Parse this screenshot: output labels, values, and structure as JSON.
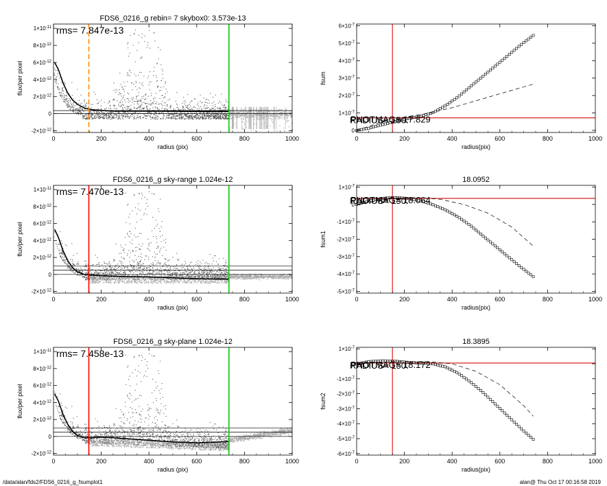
{
  "footer": {
    "left": "/data/alan/fds2/FDS6_0216_g_fsumplot1",
    "right": "alan@  Thu Oct 17 00:16:58 2019"
  },
  "colors": {
    "scatter_dark": "#555555",
    "scatter_light": "#aaaaaa",
    "aperture_orange": "#ff8c00",
    "aperture_red": "#ff0000",
    "sky_green": "#00cc00",
    "hline_red": "#dd2222"
  },
  "chart_data": [
    {
      "id": "left1",
      "type": "scatter",
      "title": "FDS6_0216_g rebin= 7    skybox0:  3.573e-13",
      "annotation": "rms= 7.847e-13",
      "xlabel": "radius (pix)",
      "ylabel": "flux/per pixel",
      "xlim": [
        0,
        1000
      ],
      "ylim": [
        -2.2e-12,
        1.05e-11
      ],
      "xticks": [
        "0",
        "200",
        "400",
        "600",
        "800",
        "1000"
      ],
      "yticks": [
        {
          "v": -2e-12,
          "m": "2",
          "e": "-12",
          "neg": true
        },
        {
          "v": 0,
          "m": "0",
          "e": "",
          "neg": false
        },
        {
          "v": 2e-12,
          "m": "2",
          "e": "-12",
          "neg": false
        },
        {
          "v": 4e-12,
          "m": "4",
          "e": "-12",
          "neg": false
        },
        {
          "v": 6e-12,
          "m": "6",
          "e": "-12",
          "neg": false
        },
        {
          "v": 8e-12,
          "m": "8",
          "e": "-12",
          "neg": false
        },
        {
          "v": 1e-11,
          "m": "1",
          "e": "-11",
          "neg": false
        }
      ],
      "vlines": [
        {
          "x": 148,
          "color": "#ff8c00",
          "dash": true
        },
        {
          "x": 735,
          "color": "#00cc00",
          "dash": false
        }
      ],
      "hlines": [
        {
          "y": 0,
          "color": "#000000"
        },
        {
          "y": 3.6e-13,
          "color": "#000000"
        }
      ],
      "profile": {
        "x": [
          5,
          20,
          40,
          60,
          80,
          100,
          130,
          160,
          200,
          250,
          300,
          400,
          500,
          600,
          700,
          735
        ],
        "y": [
          6e-12,
          5.2e-12,
          3.6e-12,
          2.4e-12,
          1.6e-12,
          1.1e-12,
          6.5e-13,
          4.8e-13,
          3.8e-13,
          3.1e-13,
          3e-13,
          2.9e-13,
          2.8e-13,
          2.7e-13,
          2.7e-13,
          2.7e-13
        ]
      },
      "scatter_style": "plane1"
    },
    {
      "id": "left2",
      "type": "scatter",
      "title": "FDS6_0216_g sky-range  1.024e-12",
      "annotation": "rms= 7.470e-13",
      "xlabel": "radius (pix)",
      "ylabel": "flux/per pixel",
      "xlim": [
        0,
        1000
      ],
      "ylim": [
        -2.2e-12,
        1.05e-11
      ],
      "xticks": [
        "0",
        "200",
        "400",
        "600",
        "800",
        "1000"
      ],
      "yticks": [
        {
          "v": -2e-12,
          "m": "2",
          "e": "-12",
          "neg": true
        },
        {
          "v": 0,
          "m": "0",
          "e": "",
          "neg": false
        },
        {
          "v": 2e-12,
          "m": "2",
          "e": "-12",
          "neg": false
        },
        {
          "v": 4e-12,
          "m": "4",
          "e": "-12",
          "neg": false
        },
        {
          "v": 6e-12,
          "m": "6",
          "e": "-12",
          "neg": false
        },
        {
          "v": 8e-12,
          "m": "8",
          "e": "-12",
          "neg": false
        },
        {
          "v": 1e-11,
          "m": "1",
          "e": "-11",
          "neg": false
        }
      ],
      "vlines": [
        {
          "x": 148,
          "color": "#ff0000",
          "dash": false
        },
        {
          "x": 735,
          "color": "#00cc00",
          "dash": false
        }
      ],
      "hlines": [
        {
          "y": 0,
          "color": "#000000"
        },
        {
          "y": 1e-12,
          "color": "#000000"
        },
        {
          "y": 5e-13,
          "color": "#000000"
        }
      ],
      "profile": {
        "x": [
          5,
          20,
          40,
          60,
          80,
          100,
          130,
          160,
          200,
          250,
          300,
          400,
          500,
          600,
          700,
          735
        ],
        "y": [
          5.3e-12,
          4.4e-12,
          2.8e-12,
          1.6e-12,
          8e-13,
          3e-13,
          0,
          -1e-13,
          -1.5e-13,
          -2e-13,
          -2.5e-13,
          -3e-13,
          -4e-13,
          -5e-13,
          -5.5e-13,
          -5.5e-13
        ]
      },
      "scatter_style": "range"
    },
    {
      "id": "left3",
      "type": "scatter",
      "title": "FDS6_0216_g sky-plane  1.024e-12",
      "annotation": "rms= 7.458e-13",
      "xlabel": "radius (pix)",
      "ylabel": "flux/per pixel",
      "xlim": [
        0,
        1000
      ],
      "ylim": [
        -2.2e-12,
        1.05e-11
      ],
      "xticks": [
        "0",
        "200",
        "400",
        "600",
        "800",
        "1000"
      ],
      "yticks": [
        {
          "v": -2e-12,
          "m": "2",
          "e": "-12",
          "neg": true
        },
        {
          "v": 0,
          "m": "0",
          "e": "",
          "neg": false
        },
        {
          "v": 2e-12,
          "m": "2",
          "e": "-12",
          "neg": false
        },
        {
          "v": 4e-12,
          "m": "4",
          "e": "-12",
          "neg": false
        },
        {
          "v": 6e-12,
          "m": "6",
          "e": "-12",
          "neg": false
        },
        {
          "v": 8e-12,
          "m": "8",
          "e": "-12",
          "neg": false
        },
        {
          "v": 1e-11,
          "m": "1",
          "e": "-11",
          "neg": false
        }
      ],
      "vlines": [
        {
          "x": 148,
          "color": "#ff0000",
          "dash": false
        },
        {
          "x": 735,
          "color": "#00cc00",
          "dash": false
        }
      ],
      "hlines": [
        {
          "y": 0,
          "color": "#000000"
        },
        {
          "y": 1e-12,
          "color": "#000000"
        },
        {
          "y": 5e-13,
          "color": "#000000"
        }
      ],
      "profile": {
        "x": [
          5,
          20,
          40,
          60,
          80,
          100,
          130,
          160,
          200,
          250,
          300,
          400,
          500,
          600,
          700,
          735
        ],
        "y": [
          5e-12,
          4.2e-12,
          2.6e-12,
          1.4e-12,
          6e-13,
          1e-13,
          -1.5e-13,
          -1.5e-13,
          -1e-13,
          -1.5e-13,
          -2.5e-13,
          -4.5e-13,
          -6.5e-13,
          -7.5e-13,
          -6.5e-13,
          -6e-13
        ]
      },
      "scatter_style": "plane"
    },
    {
      "id": "right1",
      "type": "line",
      "title": "",
      "overlay_text": [
        "RADIUS=    150.",
        "PHOTMAG=  17.829"
      ],
      "xlabel": "radius(pix)",
      "ylabel": "fsum",
      "xlim": [
        0,
        1000
      ],
      "ylim": [
        -1.2e-08,
        6.1e-07
      ],
      "xticks": [
        "0",
        "200",
        "400",
        "600",
        "800",
        "1000"
      ],
      "yticks": [
        {
          "v": 0,
          "m": "0",
          "e": "",
          "neg": false
        },
        {
          "v": 1e-07,
          "m": "1",
          "e": "-7",
          "neg": false
        },
        {
          "v": 2e-07,
          "m": "2",
          "e": "-7",
          "neg": false
        },
        {
          "v": 3e-07,
          "m": "3",
          "e": "-7",
          "neg": false
        },
        {
          "v": 4e-07,
          "m": "4",
          "e": "-7",
          "neg": false
        },
        {
          "v": 5e-07,
          "m": "5",
          "e": "-7",
          "neg": false
        },
        {
          "v": 6e-07,
          "m": "6",
          "e": "-7",
          "neg": false
        }
      ],
      "vline": 150,
      "hline": 7.2e-08,
      "markers": {
        "x0": 0,
        "x1": 740,
        "y": [
          0,
          1.3e-08,
          3.2e-08,
          5e-08,
          6.7e-08,
          8e-08,
          1e-07,
          1.4e-07,
          1.9e-07,
          2.5e-07,
          3.1e-07,
          3.7e-07,
          4.3e-07,
          4.9e-07,
          5.45e-07
        ]
      },
      "dashed": {
        "x": [
          0,
          150,
          200,
          300,
          400,
          500,
          600,
          740
        ],
        "y": [
          0,
          7e-08,
          7.6e-08,
          9.8e-08,
          1.3e-07,
          1.7e-07,
          2.1e-07,
          2.65e-07
        ]
      }
    },
    {
      "id": "right2",
      "type": "line",
      "title": "18.0952",
      "overlay_text": [
        "RADIUS=    150.",
        "PHOTMAG=  18.064"
      ],
      "xlabel": "radius(pix)",
      "ylabel": "fsum1",
      "xlim": [
        0,
        1000
      ],
      "ylim": [
        -5.1e-07,
        1.1e-07
      ],
      "xticks": [
        "0",
        "200",
        "400",
        "600",
        "800",
        "1000"
      ],
      "yticks": [
        {
          "v": -5e-07,
          "m": "5",
          "e": "-7",
          "neg": true
        },
        {
          "v": -4e-07,
          "m": "4",
          "e": "-7",
          "neg": true
        },
        {
          "v": -3e-07,
          "m": "3",
          "e": "-7",
          "neg": true
        },
        {
          "v": -2e-07,
          "m": "2",
          "e": "-7",
          "neg": true
        },
        {
          "v": -1e-07,
          "m": "1",
          "e": "-7",
          "neg": true
        },
        {
          "v": 0,
          "m": "0",
          "e": "",
          "neg": false
        },
        {
          "v": 1e-07,
          "m": "1",
          "e": "-7",
          "neg": false
        }
      ],
      "vline": 150,
      "hline": 3.5e-08,
      "markers": {
        "x0": 0,
        "x1": 740,
        "y": [
          0,
          2e-08,
          3.5e-08,
          4e-08,
          3.5e-08,
          2.2e-08,
          0,
          -3e-08,
          -7e-08,
          -1.2e-07,
          -1.8e-07,
          -2.4e-07,
          -3e-07,
          -3.6e-07,
          -4.15e-07
        ]
      },
      "dashed": {
        "x": [
          0,
          150,
          250,
          350,
          450,
          550,
          650,
          740
        ],
        "y": [
          0,
          3.5e-08,
          4e-08,
          3e-08,
          0,
          -5e-08,
          -1.3e-07,
          -2.4e-07
        ]
      }
    },
    {
      "id": "right3",
      "type": "line",
      "title": "18.3895",
      "overlay_text": [
        "RADIUS=    150.",
        "PHOTMAG=  18.172"
      ],
      "xlabel": "radius(pix)",
      "ylabel": "fsum2",
      "xlim": [
        0,
        1000
      ],
      "ylim": [
        -6.1e-07,
        1.1e-07
      ],
      "xticks": [
        "0",
        "200",
        "400",
        "600",
        "800",
        "1000"
      ],
      "yticks": [
        {
          "v": -6e-07,
          "m": "6",
          "e": "-7",
          "neg": true
        },
        {
          "v": -5e-07,
          "m": "5",
          "e": "-7",
          "neg": true
        },
        {
          "v": -4e-07,
          "m": "4",
          "e": "-7",
          "neg": true
        },
        {
          "v": -3e-07,
          "m": "3",
          "e": "-7",
          "neg": true
        },
        {
          "v": -2e-07,
          "m": "2",
          "e": "-7",
          "neg": true
        },
        {
          "v": -1e-07,
          "m": "1",
          "e": "-7",
          "neg": true
        },
        {
          "v": 0,
          "m": "0",
          "e": "",
          "neg": false
        },
        {
          "v": 1e-07,
          "m": "1",
          "e": "-7",
          "neg": false
        }
      ],
      "vline": 150,
      "hline": 5e-09,
      "markers": {
        "x0": 0,
        "x1": 740,
        "y": [
          0,
          1.5e-08,
          2e-08,
          1.8e-08,
          1e-08,
          5e-09,
          0,
          -2e-08,
          -6e-08,
          -1.2e-07,
          -1.9e-07,
          -2.7e-07,
          -3.5e-07,
          -4.3e-07,
          -5.05e-07
        ]
      },
      "dashed": {
        "x": [
          0,
          150,
          300,
          400,
          500,
          600,
          700,
          740
        ],
        "y": [
          0,
          1.5e-08,
          1.5e-08,
          0,
          -5e-08,
          -1.4e-07,
          -2.8e-07,
          -3.5e-07
        ]
      }
    }
  ]
}
